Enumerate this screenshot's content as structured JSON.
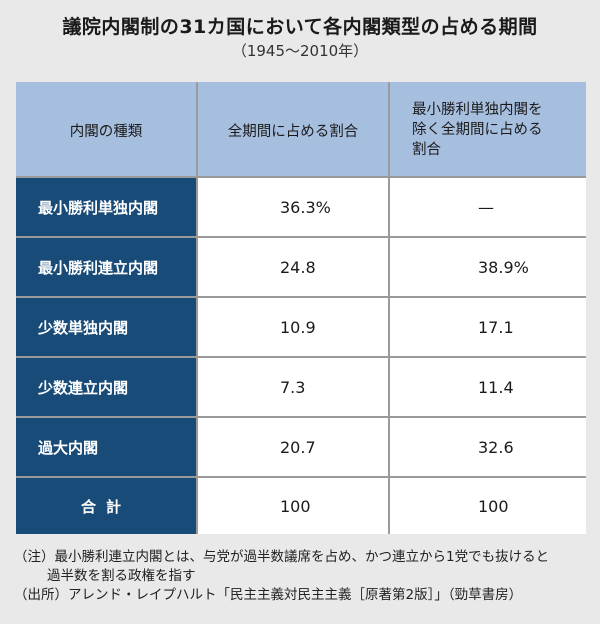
{
  "title": "議院内閣制の31カ国において各内閣類型の占める期間",
  "subtitle": "（1945〜2010年）",
  "chart_data": {
    "type": "table",
    "columns": [
      "内閣の種類",
      "全期間に占める割合",
      "最小勝利単独内閣を除く全期間に占める割合"
    ],
    "rows": [
      {
        "label": "最小勝利単独内閣",
        "all": "36.3%",
        "excl": "—"
      },
      {
        "label": "最小勝利連立内閣",
        "all": "24.8",
        "excl": "38.9%"
      },
      {
        "label": "少数単独内閣",
        "all": "10.9",
        "excl": "17.1"
      },
      {
        "label": "少数連立内閣",
        "all": "7.3",
        "excl": "11.4"
      },
      {
        "label": "過大内閣",
        "all": "20.7",
        "excl": "32.6"
      },
      {
        "label": "合計",
        "all": "100",
        "excl": "100"
      }
    ]
  },
  "header": {
    "col0": "内閣の種類",
    "col1": "全期間に占める割合",
    "col2_line1": "最小勝利単独内閣を",
    "col2_line2": "除く全期間に占める",
    "col2_line3": "割合"
  },
  "notes": {
    "note_line1": "（注）最小勝利連立内閣とは、与党が過半数議席を占め、かつ連立から1党でも抜けると",
    "note_line2": "過半数を割る政権を指す",
    "source": "（出所）アレンド・レイプハルト「民主主義対民主主義［原著第2版］」（勁草書房）"
  },
  "colors": {
    "header_bg": "#a7bfdf",
    "label_bg": "#194b79",
    "page_bg": "#e9e9e9"
  }
}
